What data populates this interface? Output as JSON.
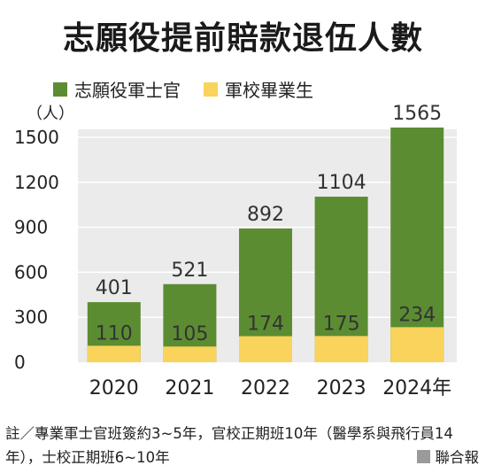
{
  "title": "志願役提前賠款退伍人數",
  "legend": [
    {
      "label": "志願役軍士官",
      "color": "#5b8c32"
    },
    {
      "label": "軍校畢業生",
      "color": "#f9d35b"
    }
  ],
  "colors": {
    "volunteer": "#5b8c32",
    "academy": "#f9d35b",
    "panel": "#ebebeb",
    "grid": "#ffffff"
  },
  "chart_data": {
    "type": "bar",
    "stacked": "overlay",
    "categories": [
      "2020",
      "2021",
      "2022",
      "2023",
      "2024年"
    ],
    "series": [
      {
        "name": "志願役軍士官",
        "values": [
          401,
          521,
          892,
          1104,
          1565
        ]
      },
      {
        "name": "軍校畢業生",
        "values": [
          110,
          105,
          174,
          175,
          234
        ]
      }
    ],
    "ylabel": "（人）",
    "yticks": [
      0,
      300,
      600,
      900,
      1200,
      1500
    ],
    "ylim": [
      0,
      1600
    ],
    "grid": true,
    "legend_position": "top"
  },
  "note": "註／專業軍士官班簽約3~5年，官校正期班10年（醫學系與飛行員14年），士校正期班6~10年",
  "source": "聯合報"
}
